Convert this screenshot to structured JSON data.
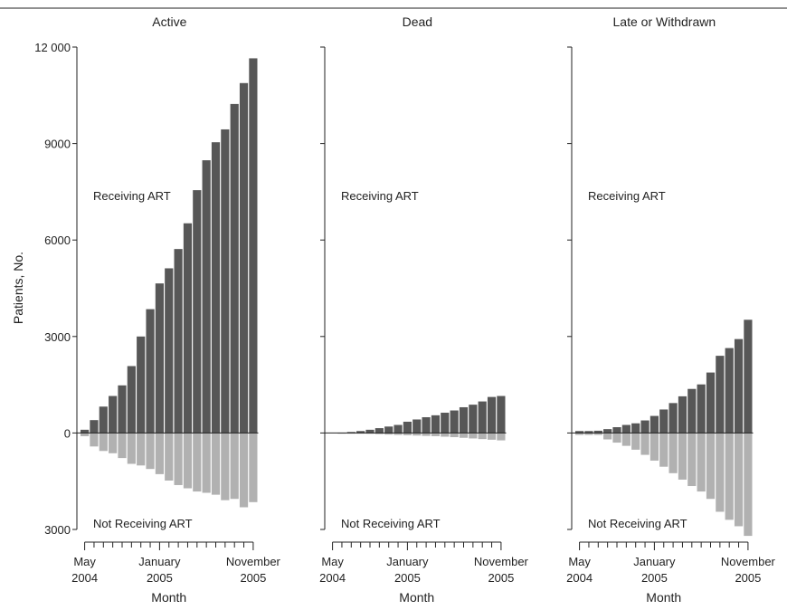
{
  "colors": {
    "receiving": "#575757",
    "not_receiving": "#b1b1b1",
    "axis": "#222222"
  },
  "chart_data": {
    "type": "bar",
    "ylabel": "Patients, No.",
    "xlabel": "Month",
    "ylim": [
      -3000,
      12000
    ],
    "yticks": [
      -3000,
      0,
      3000,
      6000,
      9000,
      12000
    ],
    "ytick_labels": [
      "3000",
      "0",
      "3000",
      "6000",
      "9000",
      "12 000"
    ],
    "x_tick_labels": [
      {
        "line1": "May",
        "line2": "2004",
        "month_index": 0
      },
      {
        "line1": "January",
        "line2": "2005",
        "month_index": 8
      },
      {
        "line1": "November",
        "line2": "2005",
        "month_index": 18
      }
    ],
    "months": [
      "May 2004",
      "Jun 2004",
      "Jul 2004",
      "Aug 2004",
      "Sep 2004",
      "Oct 2004",
      "Nov 2004",
      "Dec 2004",
      "Jan 2005",
      "Feb 2005",
      "Mar 2005",
      "Apr 2005",
      "May 2005",
      "Jun 2005",
      "Jul 2005",
      "Aug 2005",
      "Sep 2005",
      "Oct 2005",
      "Nov 2005"
    ],
    "annotations": {
      "top": "Receiving ART",
      "bottom": "Not Receiving ART"
    },
    "panels": [
      {
        "title": "Active",
        "series": [
          {
            "name": "Receiving ART",
            "values": [
              100,
              400,
              820,
              1150,
              1480,
              2080,
              3000,
              3850,
              4650,
              5120,
              5720,
              6520,
              7550,
              8480,
              9040,
              9440,
              10230,
              10880,
              11650
            ]
          },
          {
            "name": "Not Receiving ART",
            "values": [
              -100,
              -420,
              -560,
              -630,
              -780,
              -960,
              -1010,
              -1120,
              -1280,
              -1480,
              -1620,
              -1720,
              -1820,
              -1860,
              -1920,
              -2090,
              -2050,
              -2310,
              -2150
            ]
          }
        ]
      },
      {
        "title": "Dead",
        "series": [
          {
            "name": "Receiving ART",
            "values": [
              0,
              10,
              30,
              60,
              100,
              150,
              200,
              250,
              350,
              420,
              490,
              550,
              630,
              700,
              800,
              880,
              980,
              1120,
              1150
            ]
          },
          {
            "name": "Not Receiving ART",
            "values": [
              0,
              -5,
              -10,
              -15,
              -25,
              -35,
              -50,
              -60,
              -70,
              -80,
              -90,
              -100,
              -115,
              -130,
              -150,
              -170,
              -190,
              -210,
              -230
            ]
          }
        ]
      },
      {
        "title": "Late or Withdrawn",
        "series": [
          {
            "name": "Receiving ART",
            "values": [
              60,
              60,
              70,
              120,
              180,
              250,
              300,
              390,
              530,
              730,
              930,
              1140,
              1370,
              1510,
              1880,
              2400,
              2640,
              2920,
              3520
            ]
          },
          {
            "name": "Not Receiving ART",
            "values": [
              -60,
              -60,
              -60,
              -200,
              -300,
              -400,
              -520,
              -680,
              -860,
              -1050,
              -1250,
              -1450,
              -1650,
              -1820,
              -2050,
              -2450,
              -2700,
              -2900,
              -3200
            ]
          }
        ]
      }
    ]
  }
}
